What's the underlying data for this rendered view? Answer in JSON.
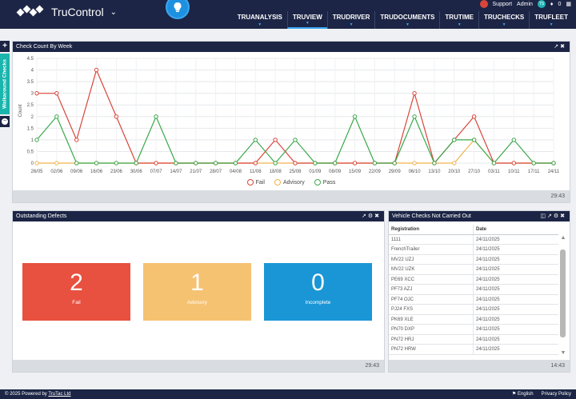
{
  "header": {
    "app_name": "TruControl",
    "support_label": "Support",
    "user_label": "Admin",
    "user_initials": "TS",
    "notification_count": "0",
    "nav": [
      {
        "label": "TRUANALYSIS",
        "active": false
      },
      {
        "label": "TRUVIEW",
        "active": true
      },
      {
        "label": "TRUDRIVER",
        "active": false
      },
      {
        "label": "TRUDOCUMENTS",
        "active": false
      },
      {
        "label": "TRUTIME",
        "active": false
      },
      {
        "label": "TRUCHECKS",
        "active": false
      },
      {
        "label": "TRUFLEET",
        "active": false
      }
    ]
  },
  "side_tab": {
    "label": "Walkaround Checks"
  },
  "check_count_panel": {
    "title": "Check Count By Week",
    "time": "29:43",
    "legend": [
      "Fail",
      "Advisory",
      "Pass"
    ]
  },
  "chart_data": {
    "type": "line",
    "title": "",
    "ylabel": "Count",
    "xlabel": "",
    "ylim": [
      0,
      4.5
    ],
    "yticks": [
      "0",
      "0.5",
      "1",
      "1.5",
      "2",
      "2.5",
      "3",
      "3.5",
      "4",
      "4.5"
    ],
    "x_tick_labels": [
      "26/05",
      "02/06",
      "09/06",
      "16/06",
      "23/06",
      "30/06",
      "07/07",
      "14/07",
      "21/07",
      "28/07",
      "04/08",
      "11/08",
      "18/08",
      "25/08",
      "01/09",
      "08/09",
      "15/09",
      "22/09",
      "29/09",
      "06/10",
      "13/10",
      "20/10",
      "27/10",
      "03/11",
      "10/11",
      "17/11",
      "24/11"
    ],
    "series": [
      {
        "name": "Fail",
        "color": "#d9453a",
        "values": [
          3,
          3,
          1,
          4,
          2,
          0,
          0,
          0,
          0,
          0,
          0,
          0,
          1,
          0,
          0,
          0,
          0,
          0,
          0,
          3,
          0,
          1,
          2,
          0,
          0,
          0,
          0
        ]
      },
      {
        "name": "Advisory",
        "color": "#f0b24a",
        "values": [
          0,
          0,
          0,
          0,
          0,
          0,
          0,
          0,
          0,
          0,
          0,
          0,
          0,
          0,
          0,
          0,
          0,
          0,
          0,
          0,
          0,
          0,
          1,
          0,
          0,
          0,
          0
        ]
      },
      {
        "name": "Pass",
        "color": "#3aa84a",
        "values": [
          1,
          2,
          0,
          0,
          0,
          0,
          2,
          0,
          0,
          0,
          0,
          1,
          0,
          1,
          0,
          0,
          2,
          0,
          0,
          2,
          0,
          1,
          1,
          0,
          1,
          0,
          0
        ]
      }
    ]
  },
  "defects_panel": {
    "title": "Outstanding Defects",
    "time": "29:43",
    "cards": [
      {
        "value": "2",
        "label": "Fail",
        "color": "#e8503f"
      },
      {
        "value": "1",
        "label": "Advisory",
        "color": "#f5c272"
      },
      {
        "value": "0",
        "label": "Incomplete",
        "color": "#1a96d6"
      }
    ]
  },
  "vehicle_panel": {
    "title": "Vehicle Checks Not Carried Out",
    "time": "14:43",
    "columns": [
      "Registration",
      "Date"
    ],
    "rows": [
      {
        "reg": "1111",
        "date": "24/11/2025"
      },
      {
        "reg": "FrenchTrailer",
        "date": "24/11/2025"
      },
      {
        "reg": "MV22 UZJ",
        "date": "24/11/2025"
      },
      {
        "reg": "MV22 UZK",
        "date": "24/11/2025"
      },
      {
        "reg": "PE69 XCC",
        "date": "24/11/2025"
      },
      {
        "reg": "PF73 AZJ",
        "date": "24/11/2025"
      },
      {
        "reg": "PF74 OJC",
        "date": "24/11/2025"
      },
      {
        "reg": "PJ24 FXS",
        "date": "24/11/2025"
      },
      {
        "reg": "PK69 XLE",
        "date": "24/11/2025"
      },
      {
        "reg": "PN70 DXP",
        "date": "24/11/2025"
      },
      {
        "reg": "PN72 HRJ",
        "date": "24/11/2025"
      },
      {
        "reg": "PN72 HRW",
        "date": "24/11/2025"
      }
    ]
  },
  "footer": {
    "copyright_prefix": "© 2025 Powered by ",
    "company_link": "TruTac Ltd",
    "language": "English",
    "privacy": "Privacy Policy"
  }
}
